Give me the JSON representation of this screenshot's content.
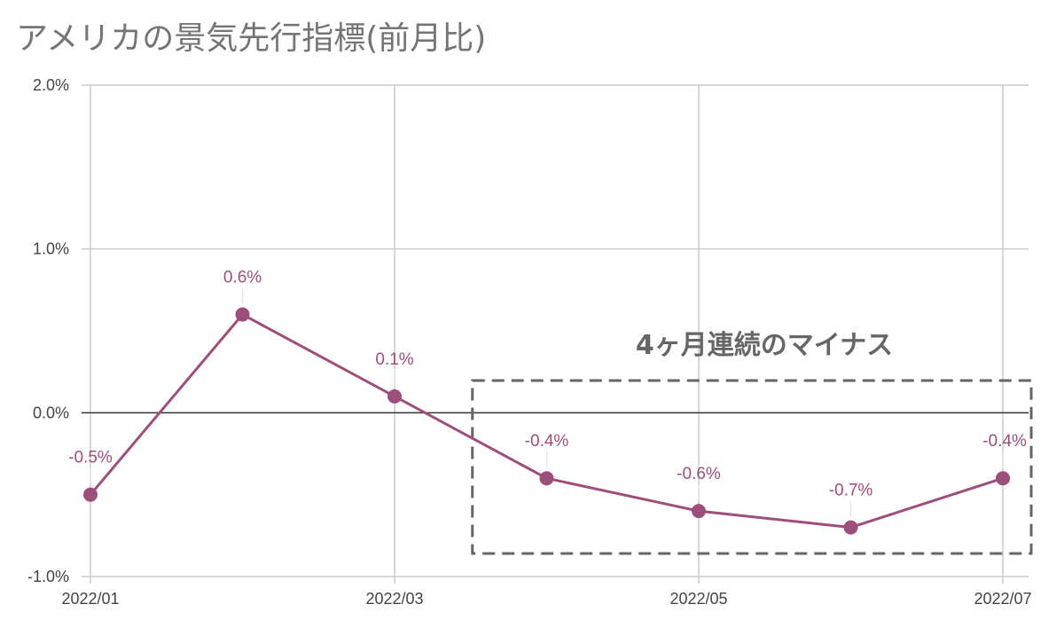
{
  "chart_data": {
    "type": "line",
    "title": "アメリカの景気先行指標(前月比)",
    "xlabel": "",
    "ylabel": "",
    "ylim": [
      -1.0,
      2.0
    ],
    "y_ticks": [
      "-1.0%",
      "0.0%",
      "1.0%",
      "2.0%"
    ],
    "x": [
      "2022/01",
      "2022/02",
      "2022/03",
      "2022/04",
      "2022/05",
      "2022/06",
      "2022/07"
    ],
    "x_tick_labels": [
      "2022/01",
      "2022/03",
      "2022/05",
      "2022/07"
    ],
    "series": [
      {
        "values": [
          -0.5,
          0.6,
          0.1,
          -0.4,
          -0.6,
          -0.7,
          -0.4
        ],
        "data_labels": [
          "-0.5%",
          "0.6%",
          "0.1%",
          "-0.4%",
          "-0.6%",
          "-0.7%",
          "-0.4%"
        ],
        "color": "#9c4f7a"
      }
    ],
    "grid": true,
    "legend": "none",
    "annotation": {
      "text": "4ヶ月連続のマイナス",
      "box_from": "2022/04",
      "box_to": "2022/07",
      "style": "dashed box"
    }
  }
}
